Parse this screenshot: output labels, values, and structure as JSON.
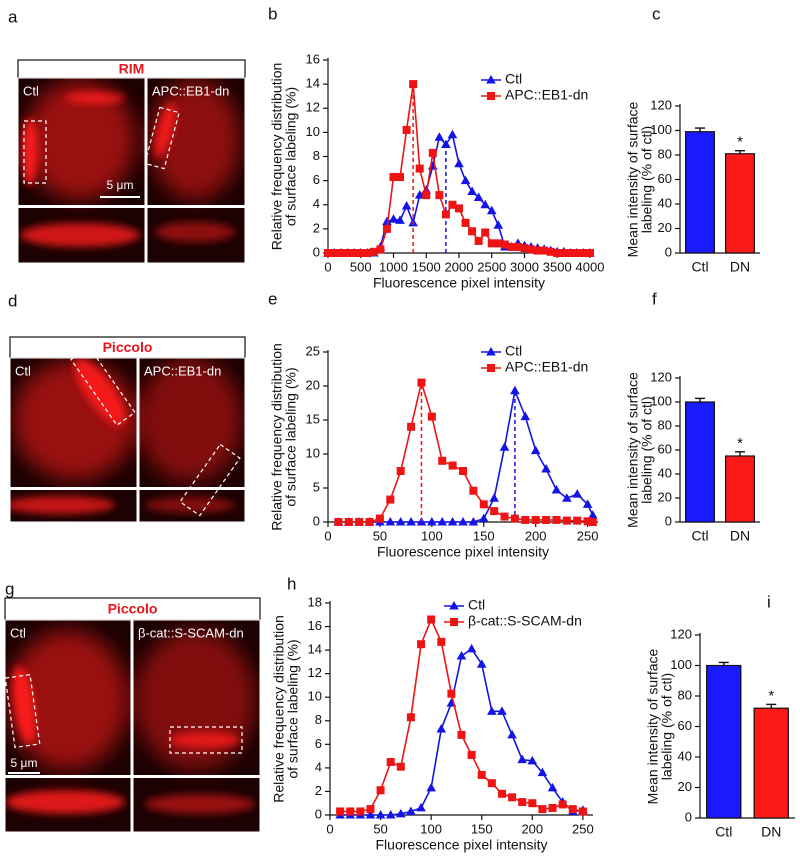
{
  "images": [
    {
      "panel": "a",
      "title": "RIM",
      "left_label": "Ctl",
      "right_label": "APC::EB1-dn",
      "scale_bar": "5 μm"
    },
    {
      "panel": "d",
      "title": "Piccolo",
      "left_label": "Ctl",
      "right_label": "APC::EB1-dn"
    },
    {
      "panel": "g",
      "title": "Piccolo",
      "left_label": "Ctl",
      "right_label": "β-cat::S-SCAM-dn",
      "scale_bar": "5 μm"
    }
  ],
  "chart_data": [
    {
      "type": "line",
      "panel": "b",
      "x_label": "Fluorescence pixel intensity",
      "y_label": [
        "Relative frequency distribution",
        "of surface labeling (%)"
      ],
      "x": [
        0,
        100,
        200,
        300,
        400,
        500,
        600,
        700,
        800,
        900,
        1000,
        1100,
        1200,
        1300,
        1400,
        1500,
        1600,
        1700,
        1800,
        1900,
        2000,
        2100,
        2200,
        2300,
        2400,
        2500,
        2600,
        2700,
        2800,
        2900,
        3000,
        3100,
        3200,
        3300,
        3400,
        3500,
        3600,
        3700,
        3800,
        3900,
        4000
      ],
      "xlim": [
        0,
        4000
      ],
      "xticks": [
        0,
        500,
        1000,
        1500,
        2000,
        2500,
        3000,
        3500,
        4000
      ],
      "ylim": [
        0,
        16
      ],
      "yticks": [
        0,
        2,
        4,
        6,
        8,
        10,
        12,
        14,
        16
      ],
      "series": [
        {
          "name": "Ctl",
          "color": "#1414e6",
          "marker": "triangle",
          "ref_x": 1800,
          "values": [
            0,
            0,
            0,
            0,
            0,
            0,
            0,
            0,
            0.5,
            2.6,
            2.8,
            2.7,
            3.9,
            2.5,
            4.8,
            5.2,
            7.2,
            9.6,
            9.0,
            9.8,
            7.4,
            6.0,
            5.1,
            4.6,
            4.0,
            3.5,
            2.3,
            0.5,
            0.5,
            0.8,
            0.6,
            0.5,
            0.4,
            0.3,
            0.2,
            0.1,
            0.1,
            0,
            0,
            0,
            0
          ]
        },
        {
          "name": "APC::EB1-dn",
          "color": "#ee1414",
          "marker": "square",
          "ref_x": 1300,
          "values": [
            0,
            0,
            0,
            0,
            0,
            0,
            0,
            0.1,
            0.3,
            2.0,
            6.3,
            6.3,
            10.2,
            14.0,
            7.0,
            4.8,
            8.3,
            4.8,
            3.2,
            4.0,
            3.7,
            2.5,
            1.8,
            1.0,
            1.7,
            0.8,
            0.8,
            0.7,
            0.5,
            0.5,
            0.4,
            0.3,
            0.2,
            0.2,
            0.1,
            0,
            0,
            0,
            0,
            0,
            0
          ]
        }
      ]
    },
    {
      "type": "bar",
      "panel": "c",
      "y_label": [
        "Mean intensity of surface",
        "labeling (% of ctl)"
      ],
      "categories": [
        "Ctl",
        "DN"
      ],
      "values": [
        99,
        81
      ],
      "errors": [
        3,
        2.5
      ],
      "colors": [
        "#1a1aff",
        "#ff1a1a"
      ],
      "annotations": [
        null,
        "*"
      ],
      "ylim": [
        0,
        120
      ],
      "yticks": [
        0,
        20,
        40,
        60,
        80,
        100,
        120
      ]
    },
    {
      "type": "line",
      "panel": "e",
      "x_label": "Fluorescence pixel intensity",
      "y_label": [
        "Relative frequency distribution",
        "of surface labeling (%)"
      ],
      "x": [
        10,
        20,
        30,
        40,
        50,
        60,
        70,
        80,
        90,
        100,
        110,
        120,
        130,
        140,
        150,
        160,
        170,
        180,
        190,
        200,
        210,
        220,
        230,
        240,
        250,
        255
      ],
      "xlim": [
        0,
        260
      ],
      "xticks": [
        0,
        50,
        100,
        150,
        200,
        250
      ],
      "ylim": [
        0,
        25
      ],
      "yticks": [
        0,
        5,
        10,
        15,
        20,
        25
      ],
      "series": [
        {
          "name": "Ctl",
          "color": "#1414e6",
          "marker": "triangle",
          "ref_x": 180,
          "values": [
            0,
            0,
            0,
            0,
            0,
            0,
            0,
            0,
            0,
            0,
            0,
            0,
            0,
            0,
            0.5,
            3.5,
            11,
            19.3,
            15.5,
            10.5,
            7.8,
            4.7,
            3.5,
            4.1,
            2.6,
            1.0
          ]
        },
        {
          "name": "APC::EB1-dn",
          "color": "#ee1414",
          "marker": "square",
          "ref_x": 90,
          "values": [
            0,
            0,
            0,
            0,
            0.5,
            3.3,
            7.5,
            14,
            20.5,
            15.5,
            9,
            8.3,
            7.5,
            4.6,
            2.6,
            1.6,
            0.8,
            0.5,
            0.3,
            0.3,
            0.3,
            0.3,
            0.2,
            0.2,
            0.1,
            0
          ]
        }
      ]
    },
    {
      "type": "bar",
      "panel": "f",
      "y_label": [
        "Mean intensity of surface",
        "labeling (% of ctl)"
      ],
      "categories": [
        "Ctl",
        "DN"
      ],
      "values": [
        100,
        55
      ],
      "errors": [
        3,
        3.5
      ],
      "colors": [
        "#1a1aff",
        "#ff1a1a"
      ],
      "annotations": [
        null,
        "*"
      ],
      "ylim": [
        0,
        120
      ],
      "yticks": [
        0,
        20,
        40,
        60,
        80,
        100,
        120
      ]
    },
    {
      "type": "line",
      "panel": "h",
      "x_label": "Fluorescence pixel intensity",
      "y_label": [
        "Relative frequency distribution",
        "of surface labeling (%)"
      ],
      "x": [
        10,
        20,
        30,
        40,
        50,
        60,
        70,
        80,
        90,
        100,
        110,
        120,
        130,
        140,
        150,
        160,
        170,
        180,
        190,
        200,
        210,
        220,
        230,
        240,
        250
      ],
      "xlim": [
        0,
        260
      ],
      "xticks": [
        0,
        50,
        100,
        150,
        200,
        250
      ],
      "ylim": [
        0,
        18
      ],
      "yticks": [
        0,
        2,
        4,
        6,
        8,
        10,
        12,
        14,
        16,
        18
      ],
      "series": [
        {
          "name": "Ctl",
          "color": "#1414e6",
          "marker": "triangle",
          "values": [
            0,
            0,
            0,
            0,
            0,
            0,
            0.1,
            0.3,
            0.6,
            2.3,
            7.3,
            9.5,
            13.5,
            14.1,
            12.8,
            8.8,
            8.8,
            6.8,
            4.7,
            4.6,
            3.6,
            2.3,
            1.1,
            0.3,
            0.4
          ]
        },
        {
          "name": "β-cat::S-SCAM-dn",
          "color": "#ee1414",
          "marker": "square",
          "values": [
            0.3,
            0.3,
            0.3,
            0.5,
            2.1,
            4.5,
            4.1,
            8.3,
            14.5,
            16.6,
            14.7,
            10.3,
            6.8,
            5.1,
            3.4,
            2.7,
            1.8,
            1.5,
            1.1,
            1.0,
            0.5,
            0.6,
            0.9,
            0.5,
            0.3
          ]
        }
      ]
    },
    {
      "type": "bar",
      "panel": "i",
      "y_label": [
        "Mean intensity of surface",
        "labeling (% of ctl)"
      ],
      "categories": [
        "Ctl",
        "DN"
      ],
      "values": [
        100,
        72
      ],
      "errors": [
        2,
        2.5
      ],
      "colors": [
        "#1a1aff",
        "#ff1a1a"
      ],
      "annotations": [
        null,
        "*"
      ],
      "ylim": [
        0,
        120
      ],
      "yticks": [
        0,
        20,
        40,
        60,
        80,
        100,
        120
      ]
    }
  ]
}
